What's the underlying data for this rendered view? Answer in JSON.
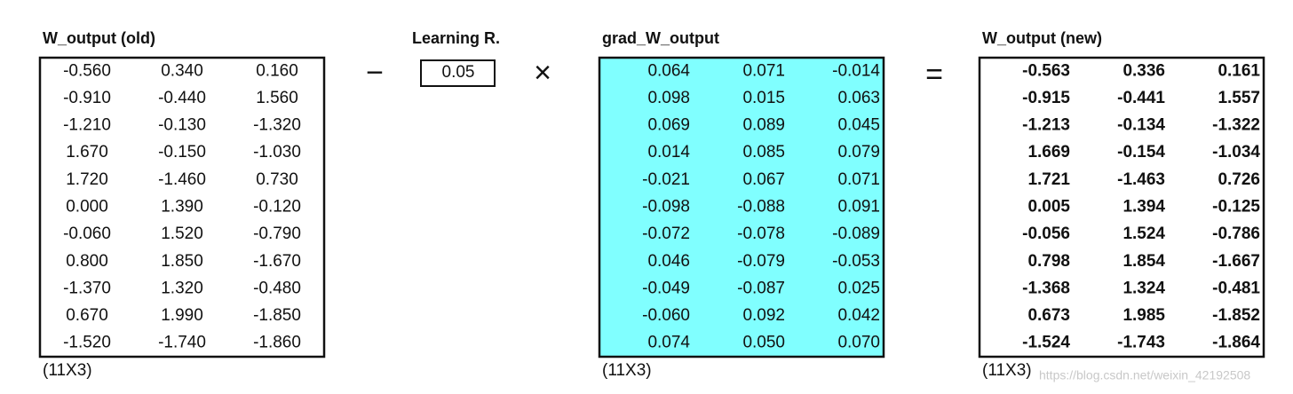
{
  "matrices": [
    {
      "title": "W_output (old)",
      "dims": "(11X3)",
      "rows": [
        [
          "-0.560",
          "0.340",
          "0.160"
        ],
        [
          "-0.910",
          "-0.440",
          "1.560"
        ],
        [
          "-1.210",
          "-0.130",
          "-1.320"
        ],
        [
          "1.670",
          "-0.150",
          "-1.030"
        ],
        [
          "1.720",
          "-1.460",
          "0.730"
        ],
        [
          "0.000",
          "1.390",
          "-0.120"
        ],
        [
          "-0.060",
          "1.520",
          "-0.790"
        ],
        [
          "0.800",
          "1.850",
          "-1.670"
        ],
        [
          "-1.370",
          "1.320",
          "-0.480"
        ],
        [
          "0.670",
          "1.990",
          "-1.850"
        ],
        [
          "-1.520",
          "-1.740",
          "-1.860"
        ]
      ]
    },
    {
      "title": "grad_W_output",
      "dims": "(11X3)",
      "rows": [
        [
          "0.064",
          "0.071",
          "-0.014"
        ],
        [
          "0.098",
          "0.015",
          "0.063"
        ],
        [
          "0.069",
          "0.089",
          "0.045"
        ],
        [
          "0.014",
          "0.085",
          "0.079"
        ],
        [
          "-0.021",
          "0.067",
          "0.071"
        ],
        [
          "-0.098",
          "-0.088",
          "0.091"
        ],
        [
          "-0.072",
          "-0.078",
          "-0.089"
        ],
        [
          "0.046",
          "-0.079",
          "-0.053"
        ],
        [
          "-0.049",
          "-0.087",
          "0.025"
        ],
        [
          "-0.060",
          "0.092",
          "0.042"
        ],
        [
          "0.074",
          "0.050",
          "0.070"
        ]
      ]
    },
    {
      "title": "W_output (new)",
      "dims": "(11X3)",
      "rows": [
        [
          "-0.563",
          "0.336",
          "0.161"
        ],
        [
          "-0.915",
          "-0.441",
          "1.557"
        ],
        [
          "-1.213",
          "-0.134",
          "-1.322"
        ],
        [
          "1.669",
          "-0.154",
          "-1.034"
        ],
        [
          "1.721",
          "-1.463",
          "0.726"
        ],
        [
          "0.005",
          "1.394",
          "-0.125"
        ],
        [
          "-0.056",
          "1.524",
          "-0.786"
        ],
        [
          "0.798",
          "1.854",
          "-1.667"
        ],
        [
          "-1.368",
          "1.324",
          "-0.481"
        ],
        [
          "0.673",
          "1.985",
          "-1.852"
        ],
        [
          "-1.524",
          "-1.743",
          "-1.864"
        ]
      ]
    }
  ],
  "learning_rate": {
    "title": "Learning R.",
    "value": "0.05"
  },
  "operators": {
    "minus": "−",
    "times": "×",
    "equals": "="
  },
  "watermark": "https://blog.csdn.net/weixin_42192508"
}
